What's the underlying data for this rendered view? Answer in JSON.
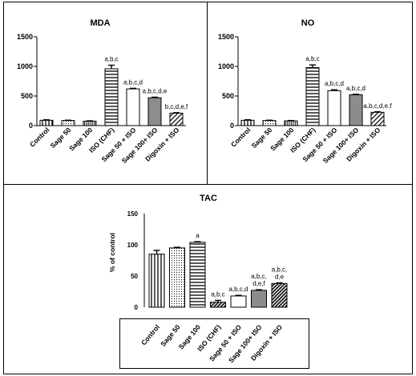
{
  "chart_data": [
    {
      "type": "bar",
      "title": "MDA",
      "categories": [
        "Control",
        "Sage 50",
        "Sage 100",
        "ISO (CHF)",
        "Sage 50 + ISO",
        "Sage 100+ ISO",
        "Digoxin + ISO"
      ],
      "values": [
        90,
        85,
        75,
        960,
        620,
        470,
        210
      ],
      "errors": [
        8,
        6,
        6,
        60,
        10,
        10,
        8
      ],
      "annotations": [
        "",
        "",
        "",
        "a,b,c",
        "a,b,c,d",
        "a,b,c,d,e",
        "b,c,d,e,f"
      ],
      "fills": [
        "vstripe",
        "dots",
        "dense-vstripe",
        "hstripe",
        "white",
        "gray",
        "diag"
      ],
      "yticks": [
        0,
        500,
        1000,
        1500
      ],
      "ylim": [
        0,
        1500
      ],
      "xlabel": "",
      "ylabel": ""
    },
    {
      "type": "bar",
      "title": "NO",
      "categories": [
        "Control",
        "Sage 50",
        "Sage 100",
        "ISO (CHF)",
        "Sage 50 + ISO",
        "Sage 100+ ISO",
        "Digoxin + ISO"
      ],
      "values": [
        90,
        85,
        80,
        980,
        590,
        520,
        225
      ],
      "errors": [
        8,
        6,
        6,
        45,
        15,
        10,
        8
      ],
      "annotations": [
        "",
        "",
        "",
        "a,b,c",
        "a,b,c,d",
        "a,b,c,d",
        "a,b,c,d,e,f"
      ],
      "fills": [
        "vstripe",
        "dots",
        "dense-vstripe",
        "hstripe",
        "white",
        "gray",
        "diag"
      ],
      "yticks": [
        0,
        500,
        1000,
        1500
      ],
      "ylim": [
        0,
        1500
      ],
      "xlabel": "",
      "ylabel": ""
    },
    {
      "type": "bar",
      "title": "TAC",
      "categories": [
        "Control",
        "Sage 50",
        "Sage 100",
        "ISO (CHF)",
        "Sage 50 + ISO",
        "Sage 100+ ISO",
        "Digoxin + ISO"
      ],
      "values": [
        85,
        95,
        104,
        8,
        18,
        27,
        38
      ],
      "errors": [
        6,
        1,
        1,
        3,
        1,
        1,
        1
      ],
      "annotations": [
        [],
        [],
        [
          "a"
        ],
        [
          "a,b,c"
        ],
        [
          "a,b,c,d"
        ],
        [
          "a,b,c,",
          "d,e,f"
        ],
        [
          "a,b,c,",
          "d,e"
        ]
      ],
      "fills": [
        "vstripe",
        "dots",
        "hstripe",
        "diag-dark",
        "white",
        "gray",
        "diag-dark"
      ],
      "yticks": [
        0,
        50,
        100,
        150
      ],
      "ylim": [
        0,
        150
      ],
      "xlabel": "",
      "ylabel": "% of control"
    }
  ]
}
